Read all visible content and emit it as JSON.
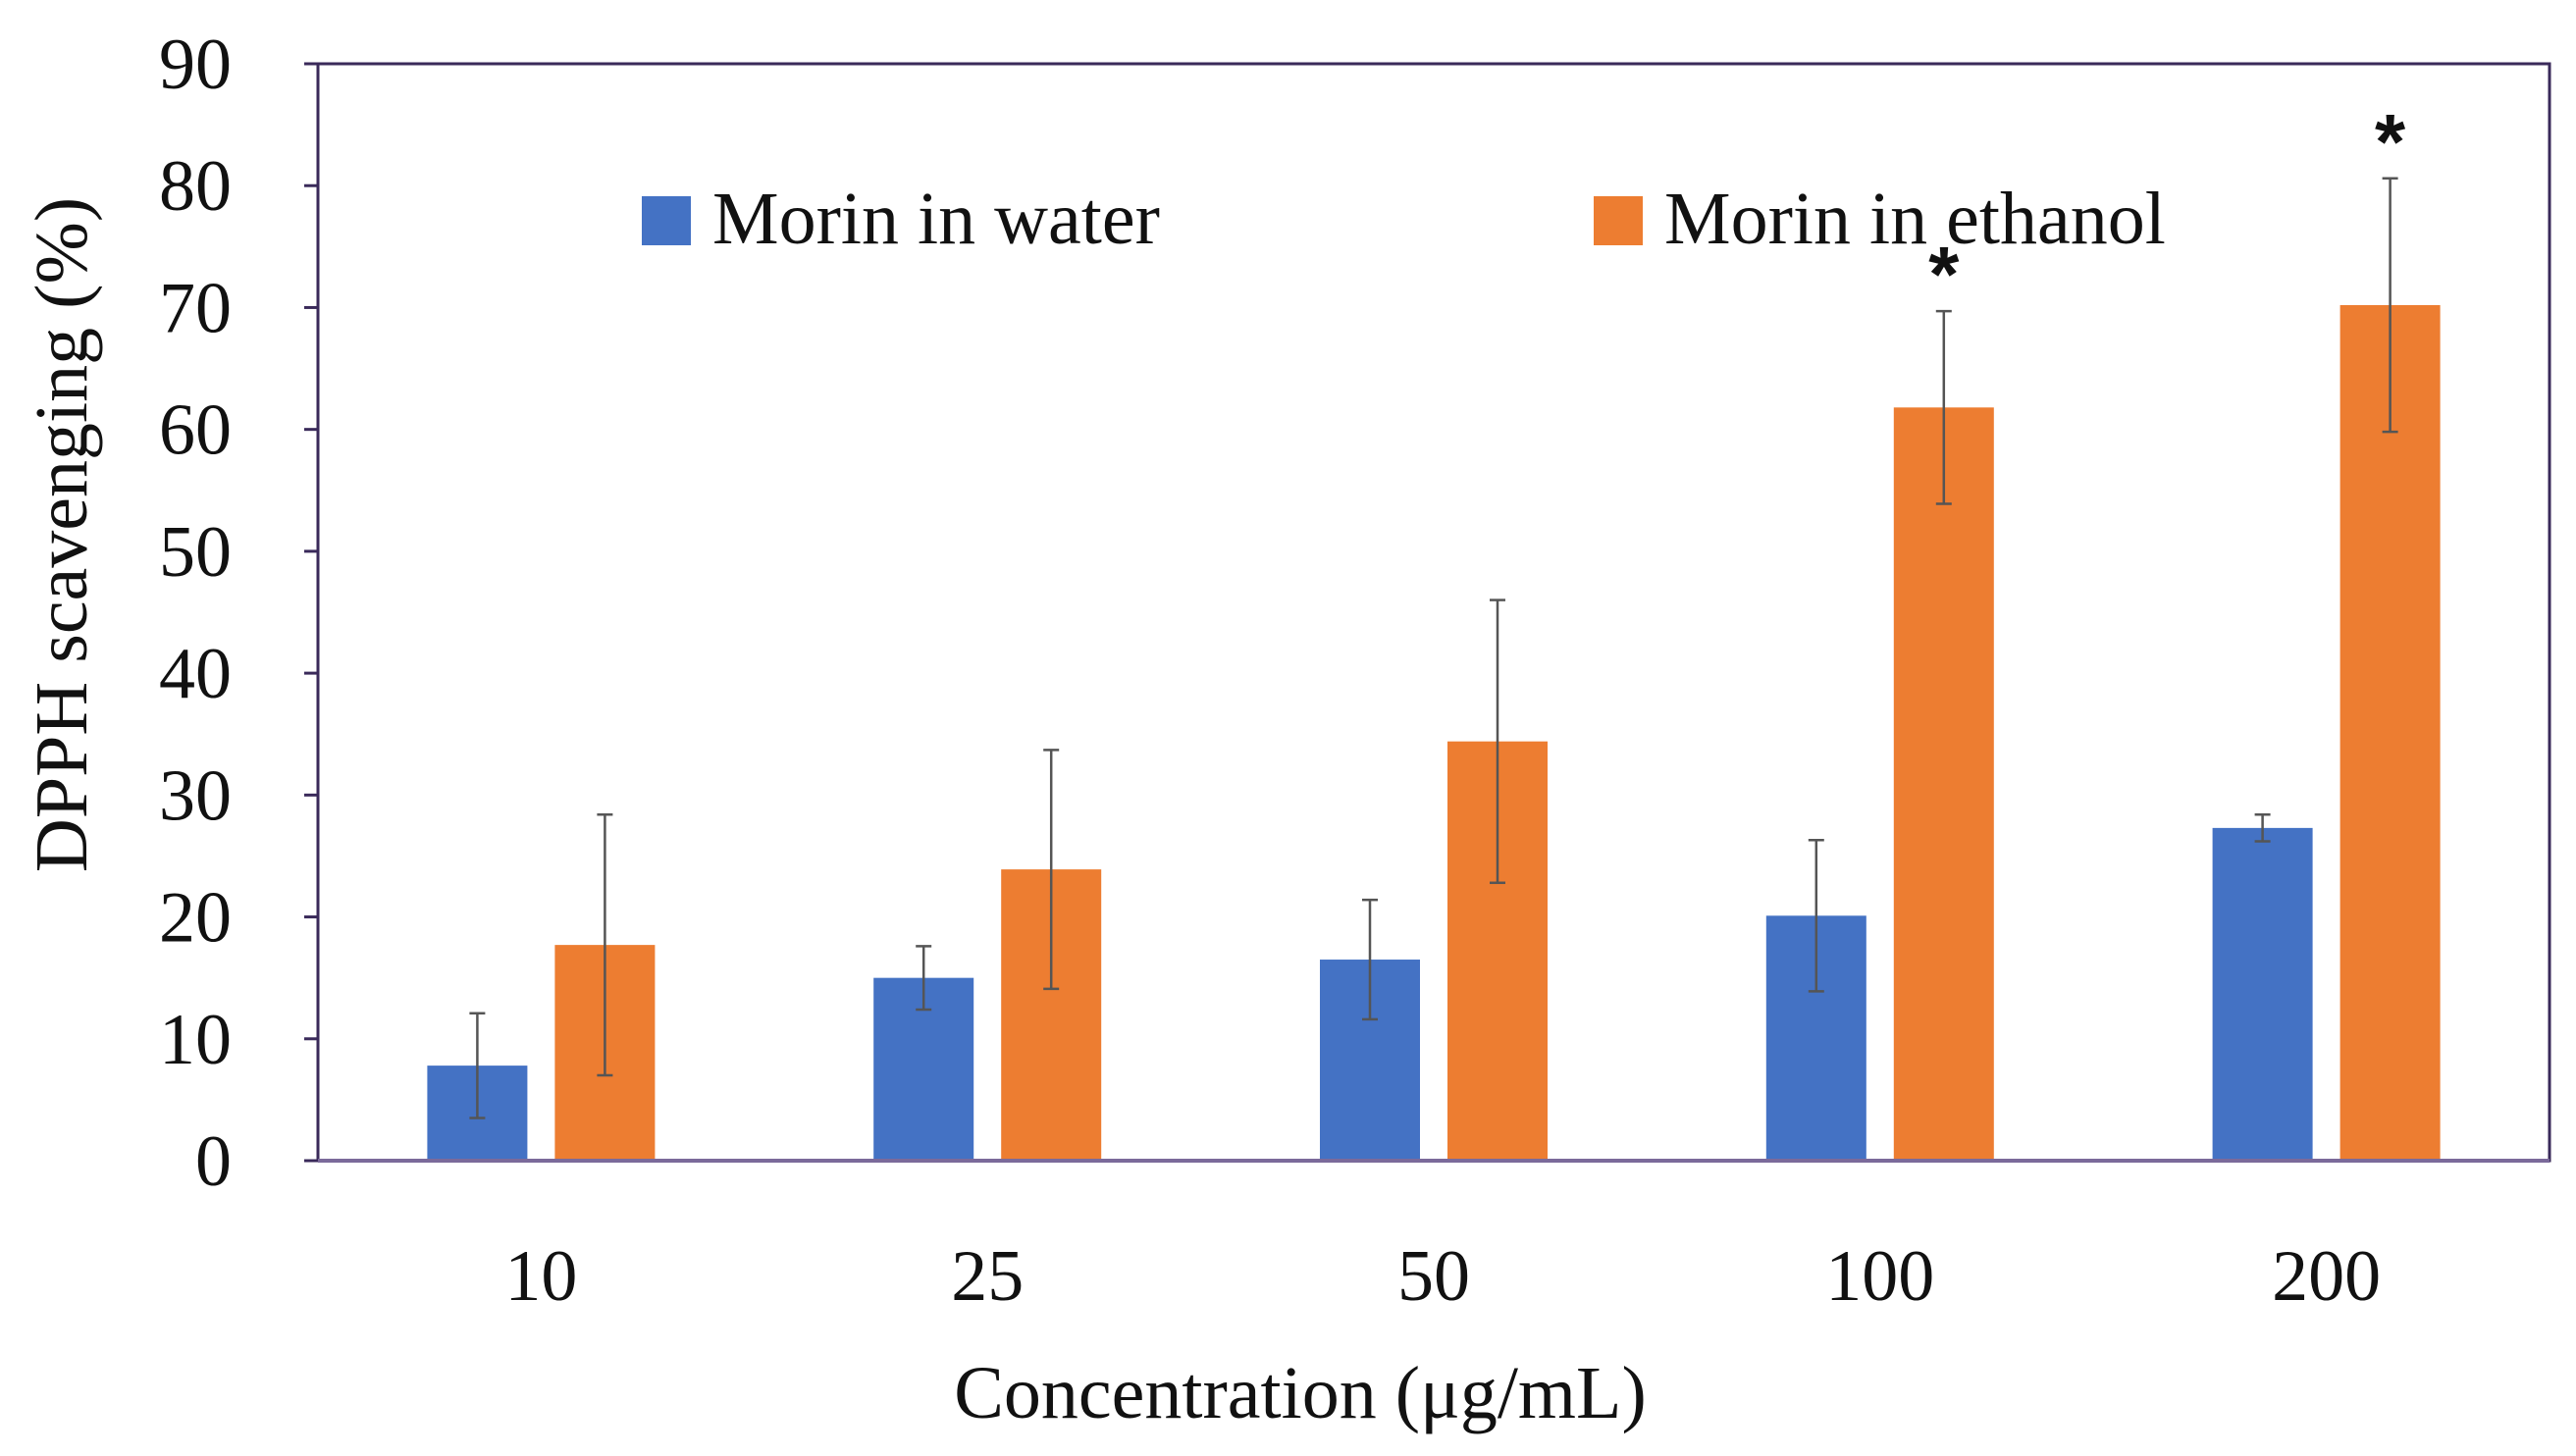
{
  "chart_data": {
    "type": "bar",
    "title": "",
    "xlabel": "Concentration (μg/mL)",
    "ylabel": "DPPH scavenging (%)",
    "ylim": [
      0,
      90
    ],
    "yticks": [
      0,
      10,
      20,
      30,
      40,
      50,
      60,
      70,
      80,
      90
    ],
    "categories": [
      "10",
      "25",
      "50",
      "100",
      "200"
    ],
    "series": [
      {
        "name": "Morin in water",
        "color": "#4472C4",
        "values": [
          7.8,
          15.0,
          16.5,
          20.1,
          27.3
        ],
        "errors": [
          4.3,
          2.6,
          4.9,
          6.2,
          1.1
        ],
        "significance": [
          "",
          "",
          "",
          "",
          ""
        ]
      },
      {
        "name": "Morin in ethanol",
        "color": "#ED7D31",
        "values": [
          17.7,
          23.9,
          34.4,
          61.8,
          70.2
        ],
        "errors": [
          10.7,
          9.8,
          11.6,
          7.9,
          10.4
        ],
        "significance": [
          "",
          "",
          "",
          "*",
          "*"
        ]
      }
    ],
    "legend_position": "top-inside",
    "grid": false
  }
}
